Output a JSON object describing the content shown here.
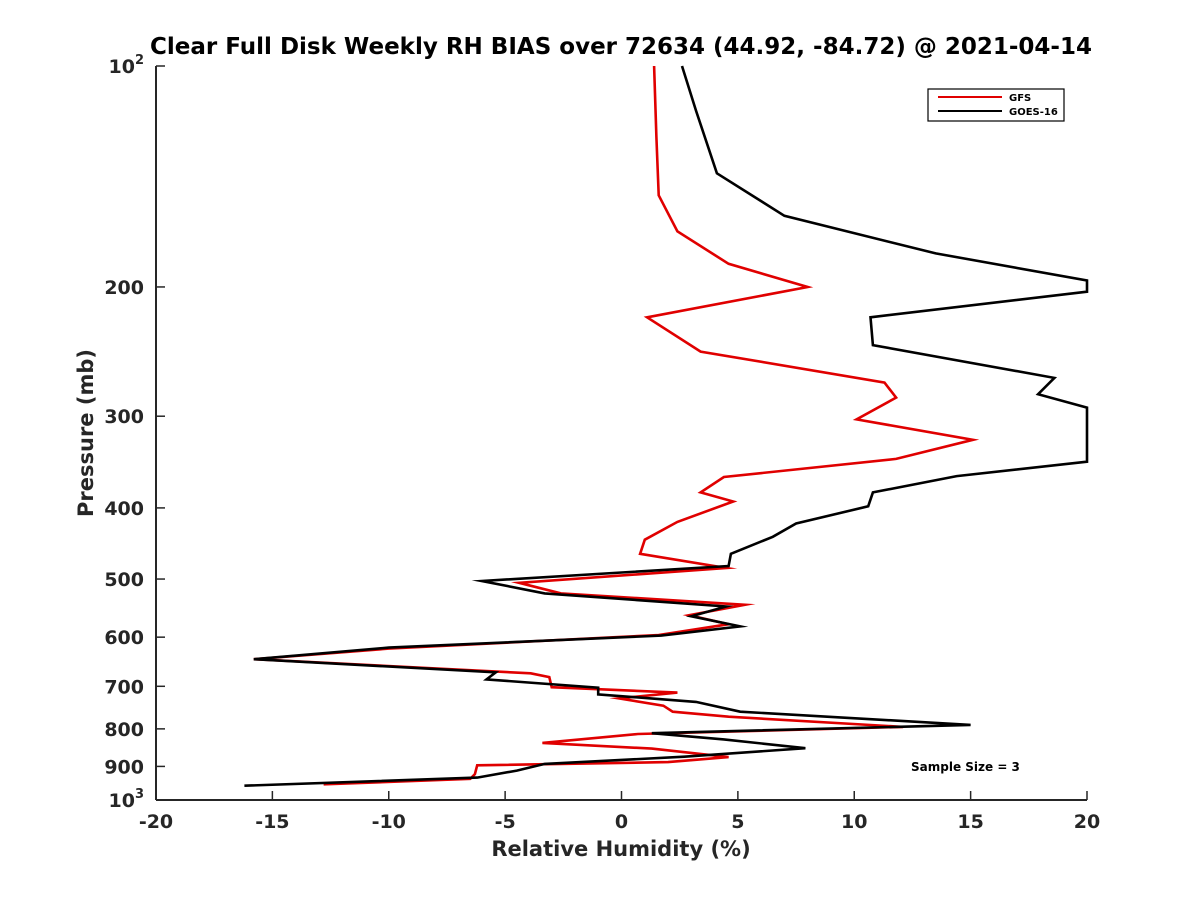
{
  "chart_data": {
    "type": "line",
    "title": "Clear Full Disk Weekly RH BIAS over 72634 (44.92, -84.72) @ 2021-04-14",
    "xlabel": "Relative Humidity (%)",
    "ylabel": "Pressure (mb)",
    "xlim": [
      -20,
      20
    ],
    "ylim": [
      100,
      1000
    ],
    "yscale": "log",
    "y_reversed": true,
    "xticks": [
      -20,
      -15,
      -10,
      -5,
      0,
      5,
      10,
      15,
      20
    ],
    "yticks": [
      {
        "value": 100,
        "label": "10",
        "sup": "2"
      },
      {
        "value": 200,
        "label": "200",
        "sup": ""
      },
      {
        "value": 300,
        "label": "300",
        "sup": ""
      },
      {
        "value": 400,
        "label": "400",
        "sup": ""
      },
      {
        "value": 500,
        "label": "500",
        "sup": ""
      },
      {
        "value": 600,
        "label": "600",
        "sup": ""
      },
      {
        "value": 700,
        "label": "700",
        "sup": ""
      },
      {
        "value": 800,
        "label": "800",
        "sup": ""
      },
      {
        "value": 900,
        "label": "900",
        "sup": ""
      },
      {
        "value": 1000,
        "label": "10",
        "sup": "3"
      }
    ],
    "grid": false,
    "legend_position": "top-right",
    "annotation": "Sample Size = 3",
    "series": [
      {
        "name": "GFS",
        "color": "#e00000",
        "points": [
          [
            1.4,
            100
          ],
          [
            1.5,
            125
          ],
          [
            1.6,
            150
          ],
          [
            2.4,
            168
          ],
          [
            4.6,
            186
          ],
          [
            8.0,
            200
          ],
          [
            1.1,
            220
          ],
          [
            3.4,
            245
          ],
          [
            11.3,
            270
          ],
          [
            11.8,
            283
          ],
          [
            10.1,
            303
          ],
          [
            15.1,
            323
          ],
          [
            11.8,
            343
          ],
          [
            4.4,
            363
          ],
          [
            3.4,
            381
          ],
          [
            4.8,
            392
          ],
          [
            2.4,
            418
          ],
          [
            1.0,
            442
          ],
          [
            0.8,
            462
          ],
          [
            4.5,
            483
          ],
          [
            -4.4,
            506
          ],
          [
            -2.6,
            523
          ],
          [
            5.3,
            542
          ],
          [
            2.9,
            560
          ],
          [
            4.6,
            576
          ],
          [
            1.6,
            596
          ],
          [
            -10.0,
            622
          ],
          [
            -15.8,
            643
          ],
          [
            -3.9,
            672
          ],
          [
            -3.1,
            680
          ],
          [
            -3.0,
            702
          ],
          [
            2.4,
            714
          ],
          [
            -0.1,
            727
          ],
          [
            1.8,
            744
          ],
          [
            2.2,
            758
          ],
          [
            4.6,
            770
          ],
          [
            12.1,
            795
          ],
          [
            0.7,
            813
          ],
          [
            -3.4,
            836
          ],
          [
            1.3,
            851
          ],
          [
            4.6,
            874
          ],
          [
            2.0,
            888
          ],
          [
            -6.2,
            897
          ],
          [
            -6.3,
            922
          ],
          [
            -6.5,
            936
          ],
          [
            -12.8,
            952
          ]
        ]
      },
      {
        "name": "GOES-16",
        "color": "#000000",
        "points": [
          [
            2.6,
            100
          ],
          [
            3.2,
            115
          ],
          [
            4.1,
            140
          ],
          [
            7.0,
            160
          ],
          [
            13.5,
            180
          ],
          [
            20.0,
            196
          ],
          [
            20.0,
            203
          ],
          [
            10.7,
            220
          ],
          [
            10.8,
            240
          ],
          [
            18.6,
            266
          ],
          [
            17.9,
            280
          ],
          [
            20.0,
            292
          ],
          [
            20.0,
            346
          ],
          [
            14.4,
            362
          ],
          [
            10.8,
            381
          ],
          [
            10.6,
            398
          ],
          [
            7.5,
            420
          ],
          [
            6.5,
            438
          ],
          [
            4.7,
            462
          ],
          [
            4.6,
            480
          ],
          [
            -6.0,
            503
          ],
          [
            -3.3,
            523
          ],
          [
            4.5,
            545
          ],
          [
            3.0,
            562
          ],
          [
            5.1,
            580
          ],
          [
            1.7,
            597
          ],
          [
            -10.0,
            620
          ],
          [
            -15.8,
            643
          ],
          [
            -5.4,
            670
          ],
          [
            -5.8,
            685
          ],
          [
            -1.0,
            703
          ],
          [
            -1.0,
            718
          ],
          [
            3.2,
            735
          ],
          [
            5.1,
            758
          ],
          [
            15.0,
            790
          ],
          [
            1.3,
            811
          ],
          [
            4.4,
            827
          ],
          [
            7.9,
            850
          ],
          [
            2.7,
            873
          ],
          [
            -3.3,
            893
          ],
          [
            -4.5,
            912
          ],
          [
            -6.2,
            932
          ],
          [
            -16.2,
            956
          ]
        ]
      }
    ]
  }
}
